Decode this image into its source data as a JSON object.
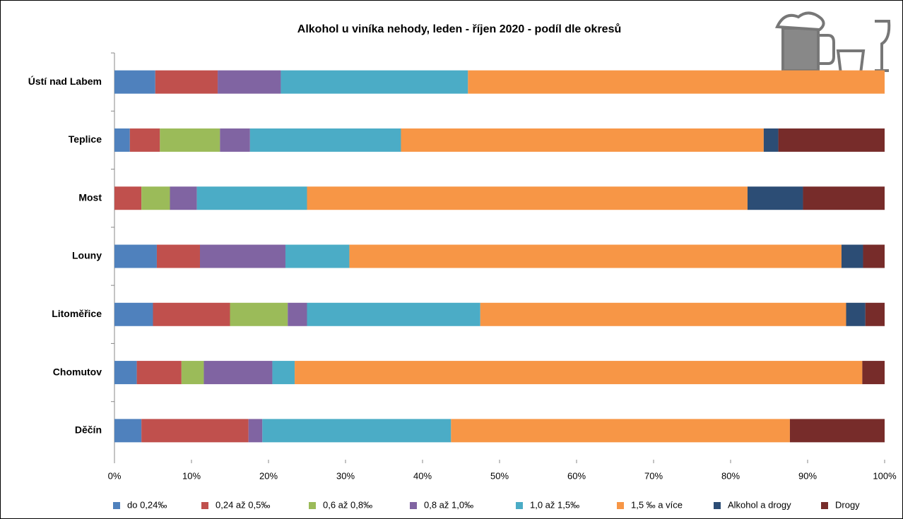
{
  "chart_data": {
    "type": "stacked_bar_horizontal",
    "title": "Alkohol u viníka nehody, leden - říjen 2020 - podíl dle okresů",
    "categories": [
      "Ústí nad Labem",
      "Teplice",
      "Most",
      "Louny",
      "Litoměřice",
      "Chomutov",
      "Děčín"
    ],
    "series": [
      {
        "name": "do 0,24‰",
        "color": "#4f81bd",
        "values": [
          5.3,
          2.0,
          0,
          5.5,
          5.0,
          2.9,
          3.5
        ]
      },
      {
        "name": "0,24 až 0,5‰",
        "color": "#c0504d",
        "values": [
          8.1,
          3.9,
          3.5,
          5.6,
          10.0,
          5.8,
          13.9
        ]
      },
      {
        "name": "0,6 až 0,8‰",
        "color": "#9bbb59",
        "values": [
          0,
          7.8,
          3.7,
          0,
          7.5,
          2.9,
          0
        ]
      },
      {
        "name": "0,8 až 1,0‰",
        "color": "#8064a2",
        "values": [
          8.2,
          3.9,
          3.5,
          11.1,
          2.5,
          8.9,
          1.8
        ]
      },
      {
        "name": "1,0 až 1,5‰",
        "color": "#4bacc6",
        "values": [
          24.3,
          19.6,
          14.3,
          8.3,
          22.5,
          2.9,
          24.5
        ]
      },
      {
        "name": "1,5 ‰ a více",
        "color": "#f79646",
        "values": [
          54.1,
          47.1,
          57.2,
          63.9,
          47.5,
          73.7,
          44.0
        ]
      },
      {
        "name": "Alkohol a drogy",
        "color": "#2c4d75",
        "values": [
          0,
          1.9,
          7.2,
          2.8,
          2.5,
          0,
          0
        ]
      },
      {
        "name": "Drogy",
        "color": "#772c2a",
        "values": [
          0,
          13.8,
          10.6,
          2.8,
          2.5,
          2.9,
          12.3
        ]
      }
    ],
    "xlim": [
      0,
      100
    ],
    "xticks": [
      {
        "value": 0,
        "label": "0%"
      },
      {
        "value": 10,
        "label": "10%"
      },
      {
        "value": 20,
        "label": "20%"
      },
      {
        "value": 30,
        "label": "30%"
      },
      {
        "value": 40,
        "label": "40%"
      },
      {
        "value": 50,
        "label": "50%"
      },
      {
        "value": 60,
        "label": "60%"
      },
      {
        "value": 70,
        "label": "70%"
      },
      {
        "value": 80,
        "label": "80%"
      },
      {
        "value": 90,
        "label": "90%"
      },
      {
        "value": 100,
        "label": "100%"
      }
    ],
    "legend": "bottom"
  }
}
